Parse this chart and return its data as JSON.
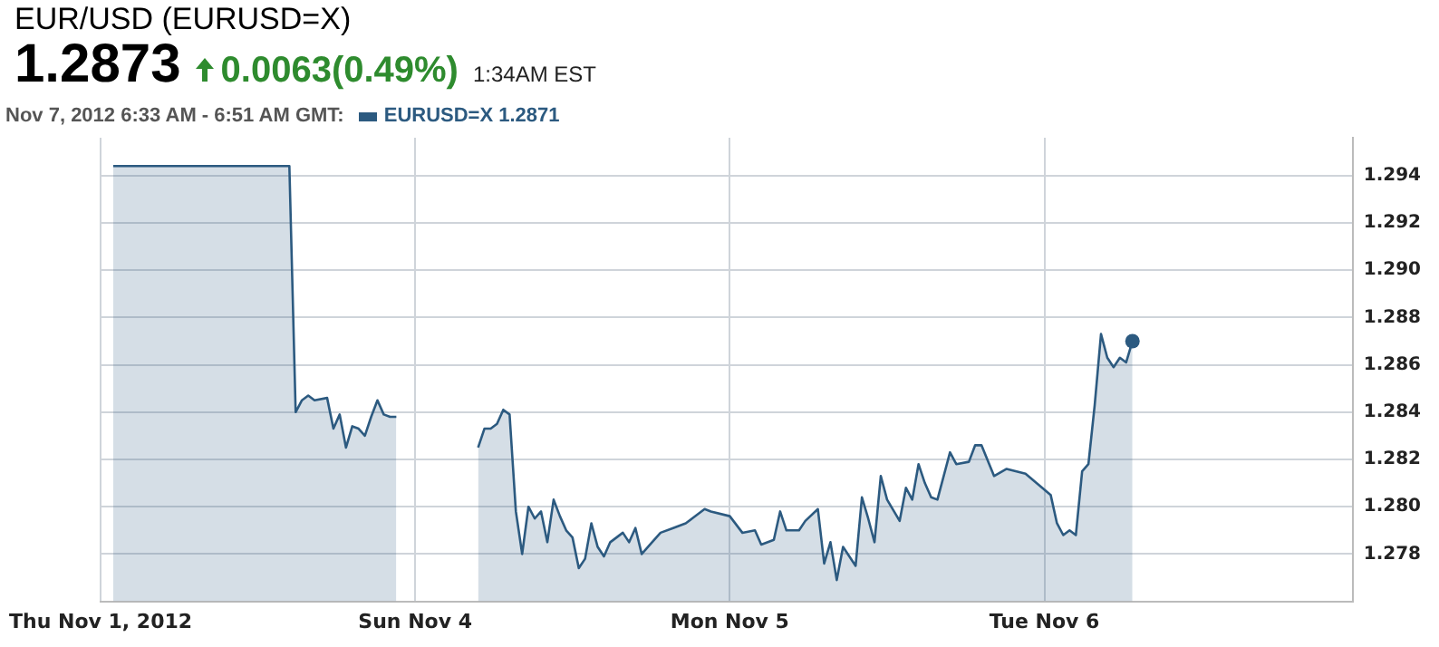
{
  "chart_data": {
    "type": "area",
    "title": "EUR/USD (EURUSD=X)",
    "subtitle": "1.2873",
    "annotations": [
      "0.0063(0.49%)",
      "1:34AM EST",
      "Nov 7, 2012 6:33 AM - 6:51 AM GMT:"
    ],
    "categories": [
      "Thu Nov 1, 2012",
      null,
      null,
      null,
      null,
      null,
      null,
      null,
      null,
      null,
      null,
      null,
      null,
      null,
      null,
      null,
      null,
      null,
      null,
      null,
      null,
      null,
      null,
      null,
      null,
      null,
      null,
      null,
      null,
      null,
      null,
      null,
      null,
      null,
      null,
      null,
      null,
      null,
      null,
      null,
      null,
      null,
      null,
      null,
      null,
      null,
      null,
      null,
      null,
      null,
      "Sun Nov 4",
      null,
      null,
      null,
      null,
      null,
      null,
      null,
      null,
      null,
      null,
      null,
      null,
      null,
      null,
      null,
      null,
      null,
      null,
      null,
      null,
      null,
      null,
      null,
      null,
      null,
      null,
      null,
      null,
      null,
      null,
      null,
      null,
      null,
      null,
      null,
      null,
      null,
      null,
      null,
      null,
      null,
      null,
      null,
      null,
      null,
      null,
      null,
      null,
      null,
      "Mon Nov 5",
      null,
      null,
      null,
      null,
      null,
      null,
      null,
      null,
      null,
      null,
      null,
      null,
      null,
      null,
      null,
      null,
      null,
      null,
      null,
      null,
      null,
      null,
      null,
      null,
      null,
      null,
      null,
      null,
      null,
      null,
      null,
      null,
      null,
      null,
      null,
      null,
      null,
      null,
      null,
      null,
      null,
      null,
      null,
      null,
      null,
      null,
      null,
      null,
      null,
      "Tue Nov 6",
      null,
      null,
      null,
      null,
      null,
      null,
      null,
      null,
      null,
      null,
      null,
      null,
      null,
      null,
      null,
      null,
      null,
      null,
      null,
      null,
      null,
      null,
      null,
      null,
      null,
      null,
      null,
      null,
      null,
      null,
      null,
      null,
      null,
      null,
      null,
      null,
      null,
      null,
      null,
      null,
      null,
      null,
      null,
      null,
      null,
      null,
      null,
      null,
      null
    ],
    "ylim": [
      1.276,
      1.2956
    ],
    "yticks": [
      {
        "value": 1.278,
        "label": "1.278"
      },
      {
        "value": 1.28,
        "label": "1.280"
      },
      {
        "value": 1.282,
        "label": "1.282"
      },
      {
        "value": 1.284,
        "label": "1.284"
      },
      {
        "value": 1.286,
        "label": "1.286"
      },
      {
        "value": 1.288,
        "label": "1.288"
      },
      {
        "value": 1.29,
        "label": "1.290"
      },
      {
        "value": 1.292,
        "label": "1.292"
      },
      {
        "value": 1.294,
        "label": "1.294"
      }
    ],
    "grid": true,
    "legend": "top left",
    "series": [
      {
        "name": "EURUSD=X 1.2871",
        "color": "#2c5a80",
        "values": [
          null,
          null,
          1.2944,
          1.2944,
          1.2944,
          1.2944,
          1.2944,
          1.2944,
          1.2944,
          1.2944,
          1.2944,
          1.2944,
          1.2944,
          1.2944,
          1.2944,
          1.2944,
          1.2944,
          1.2944,
          1.2944,
          1.2944,
          1.2944,
          1.2944,
          1.2944,
          1.2944,
          1.2944,
          1.2944,
          1.2944,
          1.2944,
          1.2944,
          1.2944,
          1.2944,
          1.284,
          1.2845,
          1.2847,
          1.2845,
          null,
          1.2846,
          1.2833,
          1.2839,
          1.2825,
          1.2834,
          1.2833,
          1.283,
          1.2838,
          1.2845,
          1.2839,
          1.2838,
          1.2838,
          null,
          null,
          null,
          null,
          null,
          null,
          null,
          null,
          null,
          null,
          null,
          null,
          1.2825,
          1.2833,
          1.2833,
          1.2835,
          1.2841,
          1.2839,
          1.2798,
          1.278,
          1.28,
          1.2795,
          1.2798,
          1.2785,
          1.2803,
          1.2796,
          1.279,
          1.2787,
          1.2774,
          1.2778,
          1.2793,
          1.2783,
          1.2779,
          1.2785,
          null,
          1.2789,
          1.2785,
          1.2791,
          1.278,
          null,
          1.2786,
          1.2789,
          null,
          1.2791,
          null,
          1.2793,
          1.2795,
          null,
          1.2799,
          1.2798,
          null,
          null,
          1.2796,
          null,
          1.2789,
          null,
          1.279,
          1.2784,
          null,
          1.2786,
          1.2798,
          1.279,
          null,
          1.279,
          1.2794,
          null,
          1.2799,
          1.2776,
          1.2785,
          1.2769,
          1.2783,
          null,
          1.2775,
          1.2804,
          1.2795,
          1.2785,
          1.2813,
          1.2803,
          null,
          1.2794,
          1.2808,
          1.2803,
          1.2818,
          1.281,
          1.2804,
          1.2803,
          null,
          1.2823,
          1.2818,
          null,
          1.2819,
          1.2826,
          1.2826,
          null,
          1.2813,
          null,
          1.2816,
          null,
          null,
          1.2814,
          null,
          null,
          null,
          1.2805,
          1.2793,
          1.2788,
          1.279,
          1.2788,
          1.2815,
          1.2818,
          1.2843,
          1.2873,
          1.2863,
          1.2859,
          1.2863,
          1.2861,
          1.287,
          null,
          null,
          null,
          null,
          null,
          null,
          null,
          null,
          null,
          null,
          null,
          null,
          null,
          null,
          null,
          null,
          null,
          null,
          null,
          null,
          null,
          null,
          null,
          null,
          null,
          null,
          null,
          null,
          null,
          null,
          null,
          null,
          null,
          null,
          null
        ]
      }
    ]
  }
}
